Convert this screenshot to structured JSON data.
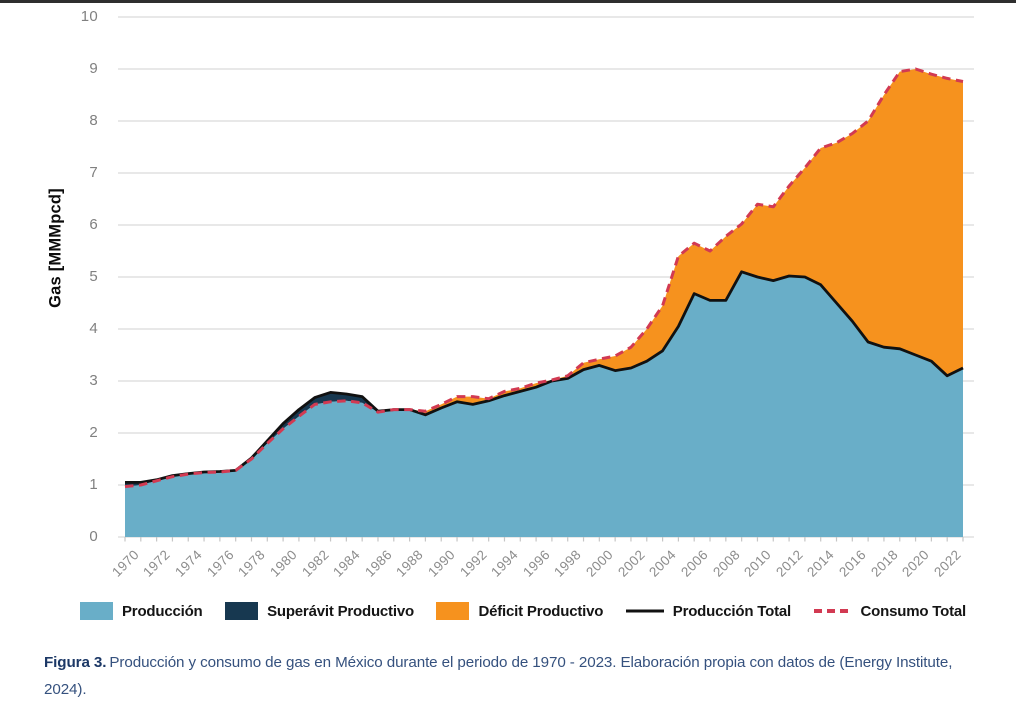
{
  "y_axis": {
    "title": "Gas [MMMpcd]",
    "ticks": [
      "0",
      "1",
      "2",
      "3",
      "4",
      "5",
      "6",
      "7",
      "8",
      "9",
      "10"
    ]
  },
  "x_axis": {
    "tick_labels": [
      "1970",
      "1972",
      "1974",
      "1976",
      "1978",
      "1980",
      "1982",
      "1984",
      "1986",
      "1988",
      "1990",
      "1992",
      "1994",
      "1996",
      "1998",
      "2000",
      "2002",
      "2004",
      "2006",
      "2008",
      "2010",
      "2012",
      "2014",
      "2016",
      "2018",
      "2020",
      "2022"
    ]
  },
  "chart_data": {
    "type": "area",
    "xlabel": "",
    "ylabel": "Gas [MMMpcd]",
    "ylim": [
      0,
      10
    ],
    "xlim": [
      1970,
      2023
    ],
    "grid": true,
    "legend_position": "bottom",
    "years": [
      1970,
      1971,
      1972,
      1973,
      1974,
      1975,
      1976,
      1977,
      1978,
      1979,
      1980,
      1981,
      1982,
      1983,
      1984,
      1985,
      1986,
      1987,
      1988,
      1989,
      1990,
      1991,
      1992,
      1993,
      1994,
      1995,
      1996,
      1997,
      1998,
      1999,
      2000,
      2001,
      2002,
      2003,
      2004,
      2005,
      2006,
      2007,
      2008,
      2009,
      2010,
      2011,
      2012,
      2013,
      2014,
      2015,
      2016,
      2017,
      2018,
      2019,
      2020,
      2021,
      2022,
      2023
    ],
    "series": [
      {
        "name": "Producción Total",
        "style": "solid-line",
        "color": "#111111",
        "values": [
          1.05,
          1.05,
          1.1,
          1.18,
          1.22,
          1.25,
          1.26,
          1.28,
          1.52,
          1.85,
          2.18,
          2.45,
          2.68,
          2.78,
          2.75,
          2.7,
          2.42,
          2.45,
          2.45,
          2.35,
          2.48,
          2.6,
          2.55,
          2.62,
          2.72,
          2.8,
          2.88,
          3.0,
          3.05,
          3.22,
          3.3,
          3.2,
          3.25,
          3.38,
          3.58,
          4.05,
          4.68,
          4.55,
          4.55,
          5.1,
          5.0,
          4.93,
          5.02,
          5.0,
          4.85,
          4.5,
          4.15,
          3.75,
          3.65,
          3.62,
          3.5,
          3.38,
          3.1,
          3.25
        ]
      },
      {
        "name": "Consumo Total",
        "style": "dashed-line",
        "color": "#D23A52",
        "values": [
          0.97,
          1.0,
          1.08,
          1.16,
          1.21,
          1.24,
          1.25,
          1.28,
          1.5,
          1.8,
          2.08,
          2.32,
          2.55,
          2.6,
          2.62,
          2.58,
          2.4,
          2.45,
          2.45,
          2.42,
          2.55,
          2.7,
          2.7,
          2.66,
          2.8,
          2.86,
          2.96,
          3.02,
          3.1,
          3.35,
          3.42,
          3.48,
          3.65,
          4.0,
          4.45,
          5.4,
          5.65,
          5.5,
          5.78,
          6.02,
          6.4,
          6.35,
          6.75,
          7.1,
          7.48,
          7.58,
          7.76,
          8.0,
          8.5,
          8.95,
          9.0,
          8.9,
          8.82,
          8.76
        ]
      }
    ],
    "areas": [
      {
        "name": "Producción",
        "rule": "under-min(producción,consumo)",
        "color": "#69AEC8"
      },
      {
        "name": "Superávit Productivo",
        "rule": "producción above consumo",
        "color": "#173850"
      },
      {
        "name": "Déficit Productivo",
        "rule": "consumo above producción",
        "color": "#F6921E"
      }
    ],
    "grid_color": "#D9D9D9",
    "tick_color": "#C6C6C6"
  },
  "legend": {
    "items": [
      {
        "label": "Producción",
        "marker": "fill",
        "color": "#69AEC8"
      },
      {
        "label": "Superávit Productivo",
        "marker": "fill",
        "color": "#173850"
      },
      {
        "label": "Déficit Productivo",
        "marker": "fill",
        "color": "#F6921E"
      },
      {
        "label": "Producción Total",
        "marker": "line",
        "color": "#111111"
      },
      {
        "label": "Consumo Total",
        "marker": "dashes",
        "color": "#D23A52"
      }
    ]
  },
  "caption": {
    "label": "Figura 3.",
    "text": "Producción y consumo de gas en México durante el periodo de 1970 - 2023. Elaboración propia con datos de (Energy Institute, 2024)."
  }
}
